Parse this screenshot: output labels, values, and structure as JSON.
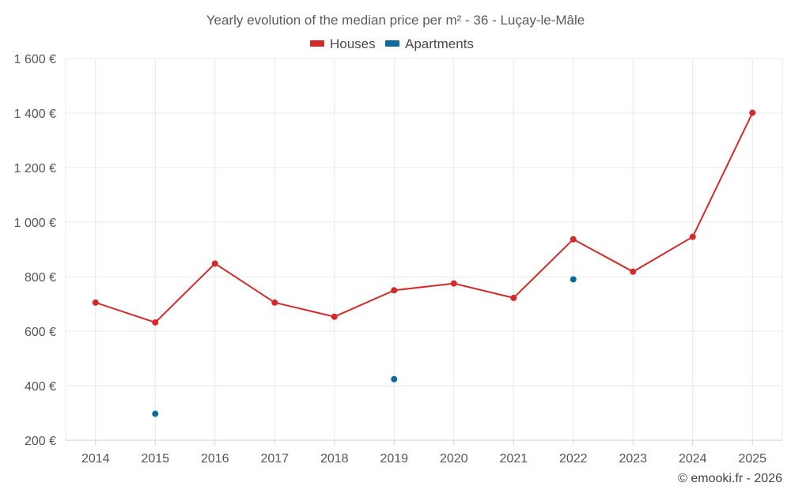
{
  "chart_data": {
    "type": "line",
    "title": "Yearly evolution of the median price per m² - 36 - Luçay-le-Mâle",
    "x": [
      "2014",
      "2015",
      "2016",
      "2017",
      "2018",
      "2019",
      "2020",
      "2021",
      "2022",
      "2023",
      "2024",
      "2025"
    ],
    "y_ticks": [
      200,
      400,
      600,
      800,
      1000,
      1200,
      1400,
      1600
    ],
    "y_tick_labels": [
      "200 €",
      "400 €",
      "600 €",
      "800 €",
      "1 000 €",
      "1 200 €",
      "1 400 €",
      "1 600 €"
    ],
    "ylim": [
      200,
      1600
    ],
    "xlabel": "",
    "ylabel": "",
    "grid": true,
    "legend_position": "top-center",
    "series": [
      {
        "name": "Houses",
        "color": "#d42a2a",
        "style": "line-markers",
        "values": [
          705,
          632,
          848,
          705,
          653,
          750,
          775,
          722,
          937,
          818,
          946,
          1401
        ]
      },
      {
        "name": "Apartments",
        "color": "#0b6aa2",
        "style": "markers",
        "values": [
          null,
          297,
          null,
          null,
          null,
          424,
          null,
          null,
          790,
          null,
          null,
          null
        ]
      }
    ]
  },
  "credit": "© emooki.fr - 2026"
}
